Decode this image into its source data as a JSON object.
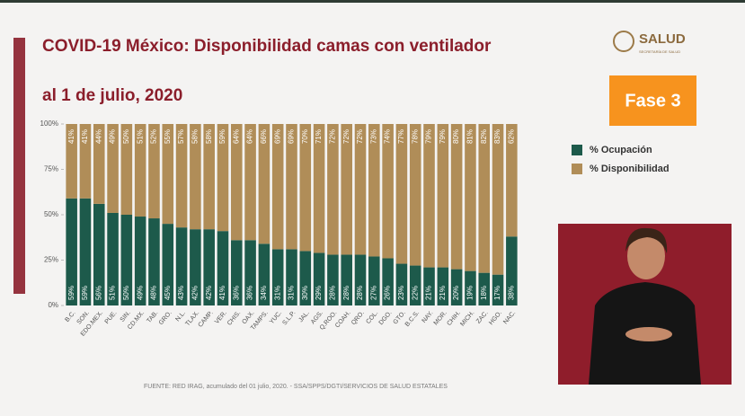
{
  "chart_data": {
    "type": "stacked_bar",
    "title": "COVID-19 México: Disponibilidad camas con ventilador",
    "subtitle": "al 1 de julio, 2020",
    "categories": [
      "B.C.",
      "SON.",
      "EDO.MEX.",
      "PUE.",
      "SIN.",
      "CD.MX.",
      "TAB.",
      "GRO.",
      "N.L.",
      "TLAX.",
      "CAMP.",
      "VER.",
      "CHIS.",
      "OAX.",
      "TAMPS.",
      "YUC.",
      "S.L.P.",
      "JAL.",
      "AGS.",
      "Q.ROO.",
      "COAH.",
      "QRO.",
      "COL.",
      "DGO.",
      "GTO.",
      "B.C.S.",
      "NAY.",
      "MOR.",
      "CHIH.",
      "MICH.",
      "ZAC.",
      "HGO.",
      "NAC."
    ],
    "series": [
      {
        "name": "% Ocupación",
        "color": "#1d5a4b",
        "values": [
          59,
          59,
          56,
          51,
          50,
          49,
          48,
          45,
          43,
          42,
          42,
          41,
          36,
          36,
          34,
          31,
          31,
          30,
          29,
          28,
          28,
          28,
          27,
          26,
          23,
          22,
          21,
          21,
          20,
          19,
          18,
          17,
          38
        ],
        "value_labels": [
          "59%",
          "59%",
          "56%",
          "51%",
          "50%",
          "49%",
          "48%",
          "45%",
          "43%",
          "42%",
          "42%",
          "41%",
          "36%",
          "36%",
          "34%",
          "31%",
          "31%",
          "30%",
          "29%",
          "28%",
          "28%",
          "28%",
          "27%",
          "26%",
          "23%",
          "22%",
          "21%",
          "21%",
          "20%",
          "19%",
          "18%",
          "17%",
          "38%"
        ]
      },
      {
        "name": "% Disponibilidad",
        "color": "#b08d58",
        "values": [
          41,
          41,
          44,
          49,
          50,
          51,
          52,
          55,
          57,
          58,
          58,
          59,
          64,
          64,
          66,
          69,
          69,
          70,
          71,
          72,
          72,
          72,
          73,
          74,
          77,
          78,
          79,
          79,
          80,
          81,
          82,
          83,
          62
        ],
        "value_labels": [
          "41%",
          "41%",
          "44%",
          "49%",
          "50%",
          "51%",
          "52%",
          "55%",
          "57%",
          "58%",
          "58%",
          "59%",
          "64%",
          "64%",
          "66%",
          "69%",
          "69%",
          "70%",
          "71%",
          "72%",
          "72%",
          "72%",
          "73%",
          "74%",
          "77%",
          "78%",
          "79%",
          "79%",
          "80%",
          "81%",
          "82%",
          "83%",
          "62%"
        ]
      }
    ],
    "ylim": [
      0,
      100
    ],
    "yticks": [
      {
        "value": 0,
        "label": "0%"
      },
      {
        "value": 25,
        "label": "25%"
      },
      {
        "value": 50,
        "label": "50%"
      },
      {
        "value": 75,
        "label": "75%"
      },
      {
        "value": 100,
        "label": "100%"
      }
    ],
    "grid": false
  },
  "header": {
    "logo": "SALUD",
    "logo_subtitle": "SECRETARÍA DE SALUD",
    "phase": "Fase 3"
  },
  "footer": "FUENTE: RED IRAG, acumulado del 01 julio, 2020. - SSA/SPPS/DGTI/SERVICIOS DE SALUD ESTATALES"
}
